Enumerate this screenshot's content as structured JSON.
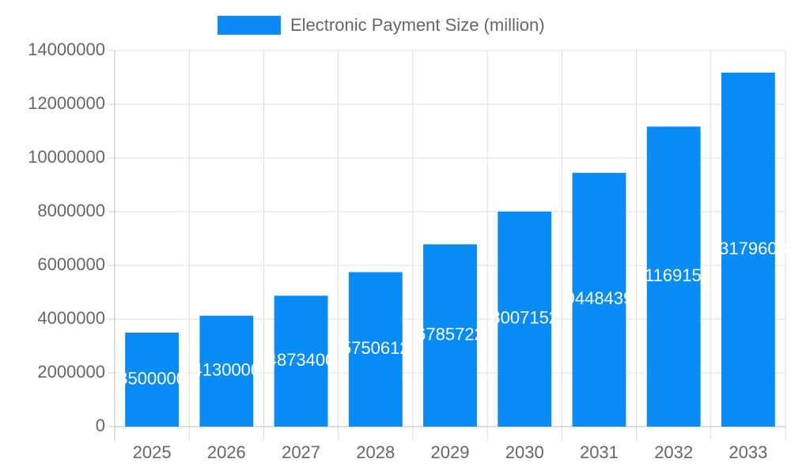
{
  "chart_data": {
    "type": "bar",
    "categories": [
      "2025",
      "2026",
      "2027",
      "2028",
      "2029",
      "2030",
      "2031",
      "2032",
      "2033"
    ],
    "series": [
      {
        "name": "Electronic Payment Size (million)",
        "color": "#0a8cf7",
        "values": [
          3500000,
          4130000,
          4873400,
          5750612,
          6785722,
          8007152,
          9448439,
          11169155,
          13179603
        ]
      }
    ],
    "ylim": [
      0,
      14000000
    ],
    "yticks": [
      0,
      2000000,
      4000000,
      6000000,
      8000000,
      10000000,
      12000000,
      14000000
    ],
    "grid": true,
    "legend": "top"
  }
}
